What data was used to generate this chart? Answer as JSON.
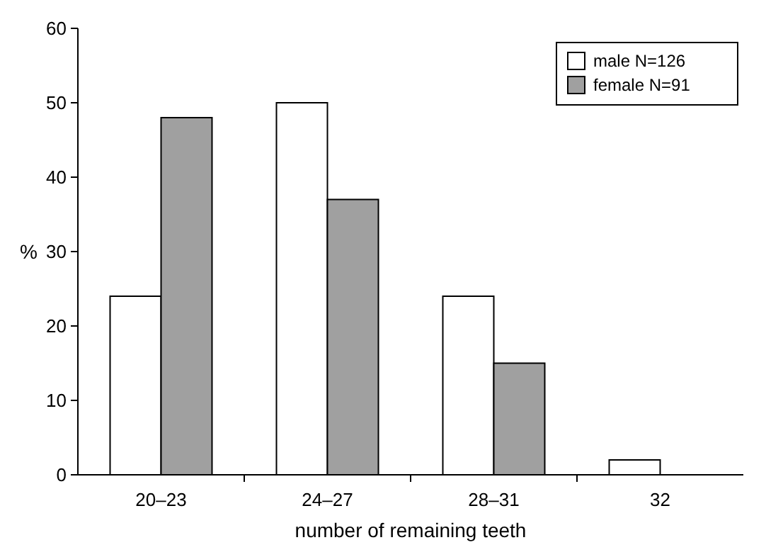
{
  "chart_data": {
    "type": "bar",
    "xlabel": "number of remaining teeth",
    "ylabel": "%",
    "categories": [
      "20–23",
      "24–27",
      "28–31",
      "32"
    ],
    "series": [
      {
        "name": "male N=126",
        "color": "#ffffff",
        "values": [
          24,
          50,
          24,
          2
        ]
      },
      {
        "name": "female N=91",
        "color": "#a0a0a0",
        "values": [
          48,
          37,
          15,
          null
        ]
      }
    ],
    "ylim": [
      0,
      60
    ],
    "yticks": [
      0,
      10,
      20,
      30,
      40,
      50,
      60
    ],
    "legend": "top right"
  }
}
